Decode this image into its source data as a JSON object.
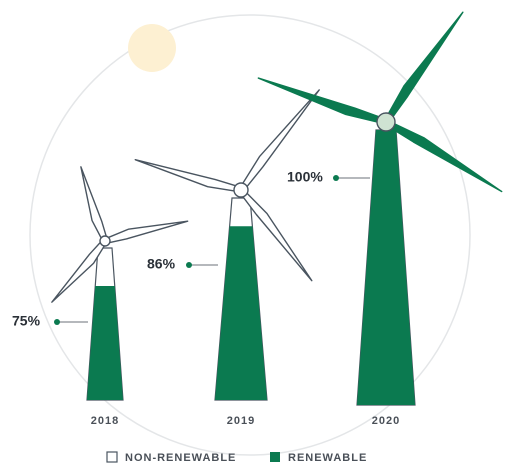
{
  "chart_data": {
    "type": "turbine",
    "categories": [
      "2018",
      "2019",
      "2020"
    ],
    "series": [
      {
        "name": "RENEWABLE",
        "color": "#0b7a50",
        "values": [
          75,
          86,
          100
        ],
        "value_labels": [
          "75%",
          "86%",
          "100%"
        ]
      }
    ],
    "remainder": {
      "name": "NON-RENEWABLE",
      "color": "#ffffff"
    },
    "ylim": [
      0,
      100
    ]
  }
}
